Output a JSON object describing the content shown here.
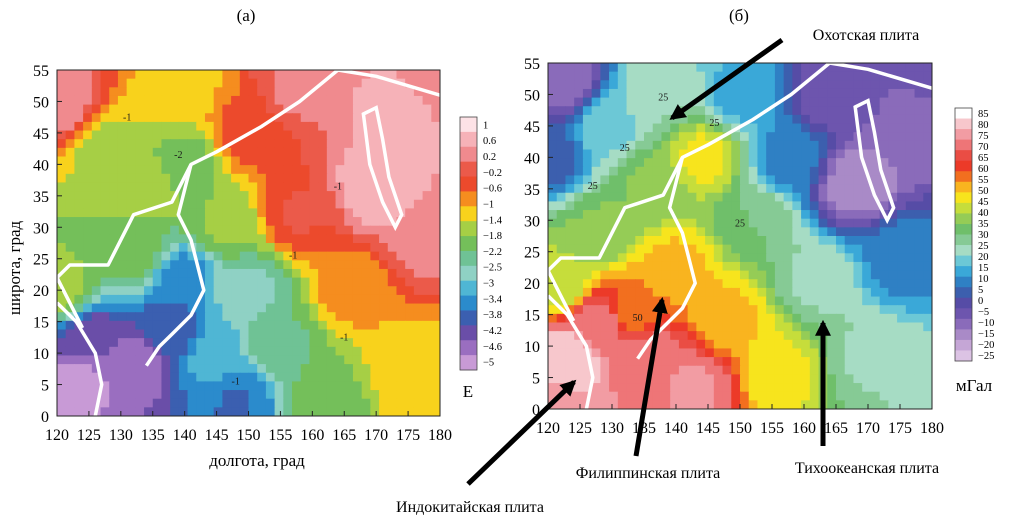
{
  "figure": {
    "panel_a_label": "(а)",
    "panel_b_label": "(б)",
    "annotations": [
      {
        "text": "Охотская плита"
      },
      {
        "text": "Филиппинская плита"
      },
      {
        "text": "Тихоокеанская плита"
      },
      {
        "text": "Индокитайская плита"
      }
    ]
  },
  "colors": {
    "plate_boundary": "#ffffff",
    "arrow": "#000000"
  },
  "chart_data": [
    {
      "type": "heatmap",
      "panel": "(а)",
      "xlabel": "долгота, град",
      "ylabel": "широта, град",
      "xlim": [
        120,
        180
      ],
      "ylim": [
        0,
        55
      ],
      "x_ticks": [
        "120",
        "125",
        "130",
        "135",
        "140",
        "145",
        "150",
        "155",
        "160",
        "165",
        "170",
        "175",
        "180"
      ],
      "y_ticks": [
        "0",
        "5",
        "10",
        "15",
        "20",
        "25",
        "30",
        "35",
        "40",
        "45",
        "50",
        "55"
      ],
      "colorbar_unit": "Е",
      "colorbar_ticks": [
        "1",
        "0.6",
        "0.2",
        "−0.2",
        "−0.6",
        "−1",
        "−1.4",
        "−1.8",
        "−2.2",
        "−2.5",
        "−3",
        "−3.4",
        "−3.8",
        "−4.2",
        "−4.6",
        "−5"
      ],
      "colorbar_colors": [
        "#fde2e6",
        "#f6b2b8",
        "#f08a8e",
        "#eb5a4a",
        "#ec4a2c",
        "#f58d1f",
        "#f8d21c",
        "#a6cf45",
        "#74bf5a",
        "#6fc295",
        "#8fd1c4",
        "#4fb6d4",
        "#2b8bcc",
        "#3b5fb0",
        "#6a4ea8",
        "#9a6ec0",
        "#c89ad6"
      ],
      "contour_labels": [
        {
          "text": "-1",
          "x": 131,
          "y": 47
        },
        {
          "text": "-2",
          "x": 139,
          "y": 41
        },
        {
          "text": "-1",
          "x": 164,
          "y": 36
        },
        {
          "text": "-1",
          "x": 157,
          "y": 25
        },
        {
          "text": "-1",
          "x": 165,
          "y": 12
        },
        {
          "text": "-1",
          "x": 148,
          "y": 5
        }
      ],
      "field_stops": [
        {
          "x": 120,
          "y": 20,
          "v": -1.6
        },
        {
          "x": 120,
          "y": 50,
          "v": 0.2
        },
        {
          "x": 123,
          "y": 5,
          "v": -4.8
        },
        {
          "x": 125,
          "y": 12,
          "v": -4.2
        },
        {
          "x": 128,
          "y": 42,
          "v": -1.6
        },
        {
          "x": 132,
          "y": 8,
          "v": -4.6
        },
        {
          "x": 132,
          "y": 26,
          "v": -2.0
        },
        {
          "x": 134,
          "y": 36,
          "v": -1.6
        },
        {
          "x": 138,
          "y": 14,
          "v": -3.8
        },
        {
          "x": 140,
          "y": 22,
          "v": -3.4
        },
        {
          "x": 140,
          "y": 40,
          "v": -2.0
        },
        {
          "x": 140,
          "y": 52,
          "v": -1.2
        },
        {
          "x": 145,
          "y": 10,
          "v": -3.0
        },
        {
          "x": 146,
          "y": 30,
          "v": -1.8
        },
        {
          "x": 148,
          "y": 2,
          "v": -3.6
        },
        {
          "x": 150,
          "y": 45,
          "v": -0.6
        },
        {
          "x": 150,
          "y": 20,
          "v": -2.6
        },
        {
          "x": 155,
          "y": 12,
          "v": -2.2
        },
        {
          "x": 158,
          "y": 32,
          "v": -0.4
        },
        {
          "x": 158,
          "y": 52,
          "v": 0.0
        },
        {
          "x": 162,
          "y": 2,
          "v": -2.0
        },
        {
          "x": 166,
          "y": 20,
          "v": -1.0
        },
        {
          "x": 170,
          "y": 36,
          "v": 0.6
        },
        {
          "x": 172,
          "y": 48,
          "v": 0.4
        },
        {
          "x": 176,
          "y": 8,
          "v": -1.2
        },
        {
          "x": 178,
          "y": 28,
          "v": 0.1
        },
        {
          "x": 180,
          "y": 55,
          "v": 0.2
        },
        {
          "x": 180,
          "y": 0,
          "v": -1.2
        }
      ]
    },
    {
      "type": "heatmap",
      "panel": "(б)",
      "xlabel": "",
      "ylabel": "",
      "xlim": [
        120,
        180
      ],
      "ylim": [
        0,
        55
      ],
      "x_ticks": [
        "120",
        "125",
        "130",
        "135",
        "140",
        "145",
        "150",
        "155",
        "160",
        "165",
        "170",
        "175",
        "180"
      ],
      "y_ticks": [
        "0",
        "5",
        "10",
        "15",
        "20",
        "25",
        "30",
        "35",
        "40",
        "45",
        "50",
        "55"
      ],
      "colorbar_unit": "мГал",
      "colorbar_ticks": [
        "85",
        "80",
        "75",
        "70",
        "65",
        "60",
        "55",
        "50",
        "45",
        "40",
        "35",
        "30",
        "25",
        "20",
        "15",
        "10",
        "5",
        "0",
        "−5",
        "−10",
        "−15",
        "−20",
        "−25"
      ],
      "colorbar_colors": [
        "#ffffff",
        "#f7c7cc",
        "#f29ca3",
        "#ee7577",
        "#ea4d44",
        "#ec3a28",
        "#f26f1f",
        "#f9b41f",
        "#f7e41d",
        "#c6dd3b",
        "#95cc56",
        "#6fbf6a",
        "#86ca95",
        "#a6dcc4",
        "#6cc8d6",
        "#3aa8d8",
        "#2f80c4",
        "#3c5fae",
        "#564ca6",
        "#6d55ae",
        "#8a6bba",
        "#a98ac7",
        "#c5a6d6",
        "#dcc3e4"
      ],
      "contour_labels": [
        {
          "text": "25",
          "x": 138,
          "y": 49
        },
        {
          "text": "25",
          "x": 132,
          "y": 41
        },
        {
          "text": "25",
          "x": 127,
          "y": 35
        },
        {
          "text": "25",
          "x": 146,
          "y": 45
        },
        {
          "text": "25",
          "x": 150,
          "y": 29
        },
        {
          "text": "50",
          "x": 134,
          "y": 14
        }
      ],
      "field_stops": [
        {
          "x": 120,
          "y": 2,
          "v": 75
        },
        {
          "x": 123,
          "y": 8,
          "v": 80
        },
        {
          "x": 122,
          "y": 20,
          "v": 40
        },
        {
          "x": 120,
          "y": 40,
          "v": 5
        },
        {
          "x": 122,
          "y": 52,
          "v": -10
        },
        {
          "x": 128,
          "y": 14,
          "v": 70
        },
        {
          "x": 128,
          "y": 28,
          "v": 35
        },
        {
          "x": 130,
          "y": 45,
          "v": 20
        },
        {
          "x": 133,
          "y": 16,
          "v": 55
        },
        {
          "x": 136,
          "y": 8,
          "v": 70
        },
        {
          "x": 136,
          "y": 36,
          "v": 35
        },
        {
          "x": 138,
          "y": 50,
          "v": 25
        },
        {
          "x": 140,
          "y": 22,
          "v": 50
        },
        {
          "x": 143,
          "y": 4,
          "v": 72
        },
        {
          "x": 144,
          "y": 40,
          "v": 45
        },
        {
          "x": 148,
          "y": 14,
          "v": 50
        },
        {
          "x": 150,
          "y": 50,
          "v": 15
        },
        {
          "x": 152,
          "y": 30,
          "v": 30
        },
        {
          "x": 156,
          "y": 6,
          "v": 45
        },
        {
          "x": 158,
          "y": 40,
          "v": 10
        },
        {
          "x": 162,
          "y": 20,
          "v": 25
        },
        {
          "x": 164,
          "y": 50,
          "v": -5
        },
        {
          "x": 168,
          "y": 36,
          "v": -15
        },
        {
          "x": 170,
          "y": 8,
          "v": 25
        },
        {
          "x": 175,
          "y": 24,
          "v": 10
        },
        {
          "x": 178,
          "y": 44,
          "v": -10
        },
        {
          "x": 180,
          "y": 0,
          "v": 25
        },
        {
          "x": 180,
          "y": 55,
          "v": -5
        }
      ]
    }
  ]
}
